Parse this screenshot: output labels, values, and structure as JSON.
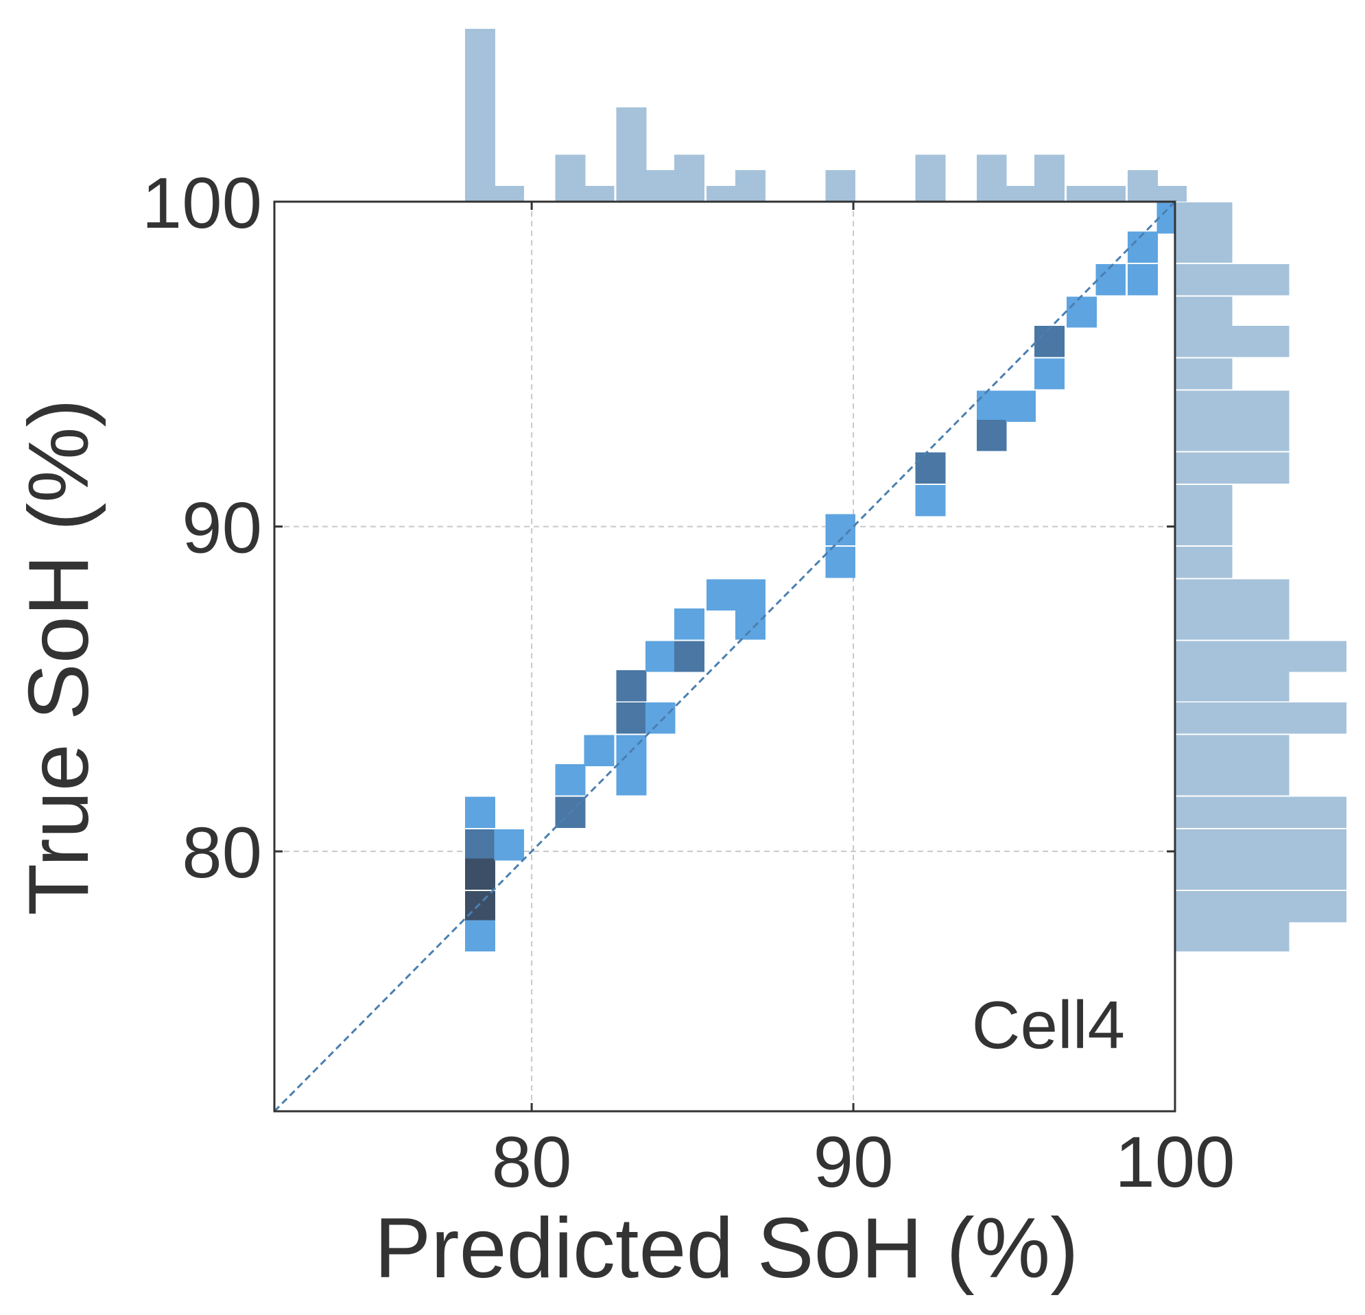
{
  "chart_data": {
    "type": "heatmap",
    "subtype": "joint 2D histogram with marginal histograms",
    "xlabel": "Predicted SoH (%)",
    "ylabel": "True SoH (%)",
    "xlim": [
      72,
      100
    ],
    "ylim": [
      72,
      100
    ],
    "x_ticks": [
      80,
      90,
      100
    ],
    "y_ticks": [
      80,
      90,
      100
    ],
    "grid": true,
    "annotation": "Cell4",
    "bin_width_x": 0.933,
    "bin_width_y": 0.96,
    "diagonal": {
      "from": [
        72,
        72
      ],
      "to": [
        100,
        100
      ],
      "style": "dashed",
      "color": "#4a7fb0"
    },
    "colors": {
      "light": "#5ea4e0",
      "mid": "#4a77a3",
      "dark": "#3c4f66",
      "marginal": "#a5c2da",
      "axis": "#333333",
      "grid": "#c8c8c8"
    },
    "cells": [
      {
        "x": 78.4,
        "y": 81.2,
        "level": 1
      },
      {
        "x": 78.4,
        "y": 80.2,
        "level": 2
      },
      {
        "x": 78.4,
        "y": 79.3,
        "level": 3
      },
      {
        "x": 78.4,
        "y": 78.3,
        "level": 3
      },
      {
        "x": 78.4,
        "y": 77.4,
        "level": 1
      },
      {
        "x": 79.3,
        "y": 80.2,
        "level": 1
      },
      {
        "x": 81.2,
        "y": 82.2,
        "level": 1
      },
      {
        "x": 81.2,
        "y": 81.2,
        "level": 2
      },
      {
        "x": 82.1,
        "y": 83.1,
        "level": 1
      },
      {
        "x": 83.1,
        "y": 83.1,
        "level": 1
      },
      {
        "x": 83.1,
        "y": 82.2,
        "level": 1
      },
      {
        "x": 83.1,
        "y": 84.1,
        "level": 2
      },
      {
        "x": 83.1,
        "y": 85.1,
        "level": 2
      },
      {
        "x": 84.0,
        "y": 84.1,
        "level": 1
      },
      {
        "x": 84.0,
        "y": 86.0,
        "level": 1
      },
      {
        "x": 84.9,
        "y": 86.0,
        "level": 2
      },
      {
        "x": 84.9,
        "y": 87.0,
        "level": 1
      },
      {
        "x": 85.9,
        "y": 87.9,
        "level": 1
      },
      {
        "x": 86.8,
        "y": 87.9,
        "level": 1
      },
      {
        "x": 86.8,
        "y": 87.0,
        "level": 1
      },
      {
        "x": 89.6,
        "y": 89.9,
        "level": 1
      },
      {
        "x": 89.6,
        "y": 88.9,
        "level": 1
      },
      {
        "x": 92.4,
        "y": 91.8,
        "level": 2
      },
      {
        "x": 92.4,
        "y": 90.8,
        "level": 1
      },
      {
        "x": 94.3,
        "y": 93.7,
        "level": 1
      },
      {
        "x": 94.3,
        "y": 92.8,
        "level": 2
      },
      {
        "x": 95.2,
        "y": 93.7,
        "level": 1
      },
      {
        "x": 96.1,
        "y": 95.7,
        "level": 2
      },
      {
        "x": 96.1,
        "y": 94.7,
        "level": 1
      },
      {
        "x": 97.1,
        "y": 96.6,
        "level": 1
      },
      {
        "x": 98.0,
        "y": 97.6,
        "level": 1
      },
      {
        "x": 99.0,
        "y": 97.6,
        "level": 1
      },
      {
        "x": 99.0,
        "y": 98.6,
        "level": 1
      },
      {
        "x": 99.9,
        "y": 99.5,
        "level": 1
      }
    ],
    "marginal_x": {
      "bin_centers": [
        78.4,
        79.3,
        80.3,
        81.2,
        82.1,
        83.1,
        84.0,
        84.9,
        85.9,
        86.8,
        87.7,
        88.7,
        89.6,
        90.5,
        91.5,
        92.4,
        93.3,
        94.3,
        95.2,
        96.1,
        97.1,
        98.0,
        99.0,
        99.9
      ],
      "counts": [
        11,
        1,
        0,
        3,
        1,
        6,
        2,
        3,
        1,
        2,
        0,
        0,
        2,
        0,
        0,
        3,
        0,
        3,
        1,
        3,
        1,
        1,
        2,
        1
      ]
    },
    "marginal_y": {
      "bin_centers": [
        77.4,
        78.3,
        79.3,
        80.2,
        81.2,
        82.2,
        83.1,
        84.1,
        85.1,
        86.0,
        87.0,
        87.9,
        88.9,
        89.9,
        90.8,
        91.8,
        92.8,
        93.7,
        94.7,
        95.7,
        96.6,
        97.6,
        98.6,
        99.5
      ],
      "counts": [
        2,
        3,
        3,
        3,
        3,
        2,
        2,
        3,
        2,
        3,
        2,
        2,
        1,
        1,
        1,
        2,
        2,
        2,
        1,
        2,
        1,
        2,
        1,
        1
      ]
    }
  }
}
